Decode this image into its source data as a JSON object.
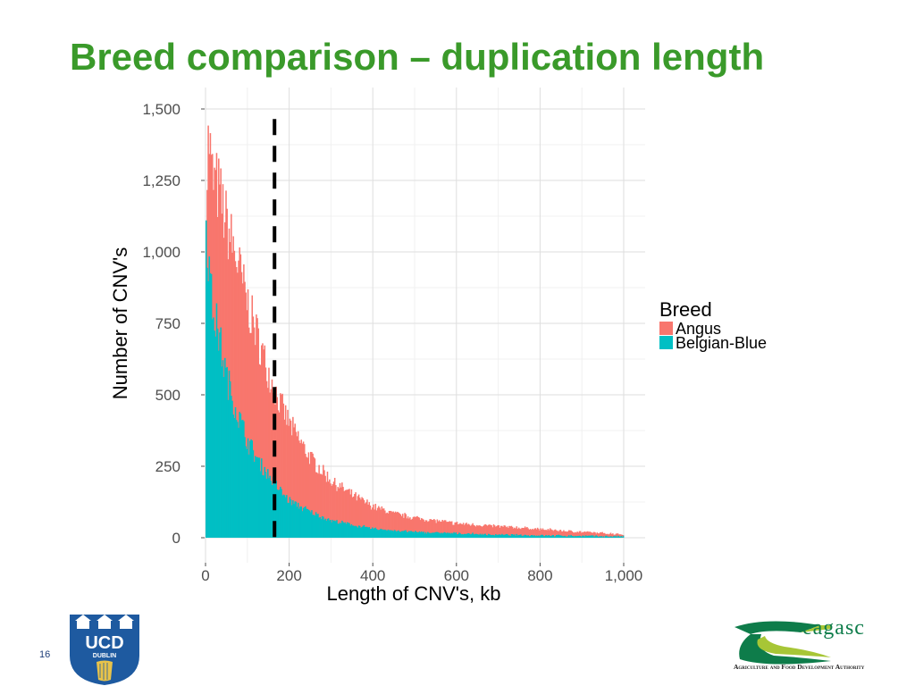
{
  "slide": {
    "title": "Breed comparison – duplication length",
    "title_color": "#3a9a2a",
    "page_number": "16"
  },
  "logos": {
    "ucd": {
      "text": "UCD",
      "subtext": "DUBLIN",
      "icon": "ucd-crest-icon"
    },
    "teagasc": {
      "text": "eagasc",
      "tagline": "Agriculture and Food Development Authority",
      "icon": "teagasc-t-icon"
    }
  },
  "chart_data": {
    "type": "bar",
    "subtype": "overlaid-histogram",
    "xlabel": "Length of CNV's, kb",
    "ylabel": "Number of CNV's",
    "xlim": [
      -5,
      1045
    ],
    "ylim": [
      -35,
      1525
    ],
    "xticks": [
      0,
      200,
      400,
      600,
      800,
      1000
    ],
    "xtick_labels": [
      "0",
      "200",
      "400",
      "600",
      "800",
      "1,000"
    ],
    "yticks": [
      0,
      250,
      500,
      750,
      1000,
      1250,
      1500
    ],
    "ytick_labels": [
      "0",
      "250",
      "500",
      "750",
      "1,000",
      "1,250",
      "1,500"
    ],
    "grid": true,
    "legend": {
      "title": "Breed",
      "position": "right"
    },
    "reference_line": {
      "x": 165,
      "style": "dashed",
      "color": "#000000"
    },
    "bin_width_kb": 2.5,
    "bin_start_kb": 0,
    "series": [
      {
        "name": "Angus",
        "color": "#f8766d",
        "key_values": [
          {
            "x": 2.5,
            "y": 1230
          },
          {
            "x": 7.5,
            "y": 1420
          },
          {
            "x": 15,
            "y": 1260
          },
          {
            "x": 30,
            "y": 1220
          },
          {
            "x": 50,
            "y": 1100
          },
          {
            "x": 75,
            "y": 970
          },
          {
            "x": 100,
            "y": 820
          },
          {
            "x": 125,
            "y": 700
          },
          {
            "x": 150,
            "y": 580
          },
          {
            "x": 175,
            "y": 480
          },
          {
            "x": 200,
            "y": 400
          },
          {
            "x": 250,
            "y": 280
          },
          {
            "x": 300,
            "y": 200
          },
          {
            "x": 350,
            "y": 150
          },
          {
            "x": 400,
            "y": 110
          },
          {
            "x": 450,
            "y": 85
          },
          {
            "x": 500,
            "y": 70
          },
          {
            "x": 600,
            "y": 50
          },
          {
            "x": 700,
            "y": 40
          },
          {
            "x": 800,
            "y": 30
          },
          {
            "x": 900,
            "y": 20
          },
          {
            "x": 1000,
            "y": 12
          }
        ]
      },
      {
        "name": "Belgian-Blue",
        "color": "#00bfc4",
        "key_values": [
          {
            "x": 2.5,
            "y": 1080
          },
          {
            "x": 7.5,
            "y": 960
          },
          {
            "x": 15,
            "y": 820
          },
          {
            "x": 30,
            "y": 720
          },
          {
            "x": 50,
            "y": 560
          },
          {
            "x": 75,
            "y": 440
          },
          {
            "x": 100,
            "y": 340
          },
          {
            "x": 125,
            "y": 270
          },
          {
            "x": 150,
            "y": 220
          },
          {
            "x": 175,
            "y": 170
          },
          {
            "x": 200,
            "y": 130
          },
          {
            "x": 250,
            "y": 90
          },
          {
            "x": 300,
            "y": 60
          },
          {
            "x": 350,
            "y": 45
          },
          {
            "x": 400,
            "y": 32
          },
          {
            "x": 450,
            "y": 25
          },
          {
            "x": 500,
            "y": 20
          },
          {
            "x": 600,
            "y": 15
          },
          {
            "x": 700,
            "y": 10
          },
          {
            "x": 800,
            "y": 8
          },
          {
            "x": 900,
            "y": 6
          },
          {
            "x": 1000,
            "y": 4
          }
        ]
      }
    ]
  }
}
